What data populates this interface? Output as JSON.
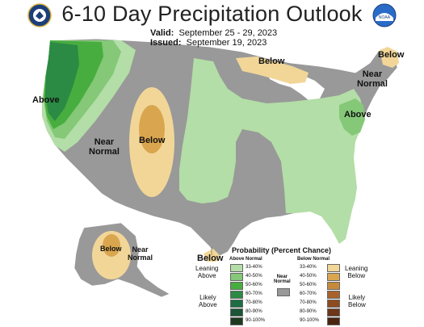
{
  "header": {
    "title": "6-10 Day Precipitation Outlook",
    "valid_label": "Valid:",
    "valid_value": "September 25 - 29, 2023",
    "issued_label": "Issued:",
    "issued_value": "September 19, 2023"
  },
  "logos": {
    "left": "doc-seal-icon",
    "right": "noaa-logo-icon",
    "right_text": "NOAA"
  },
  "map_labels": {
    "above_west": "Above",
    "near_normal_west": [
      "Near",
      "Normal"
    ],
    "below_rockies": "Below",
    "below_great_lakes": "Below",
    "below_maine": "Below",
    "near_normal_northeast": [
      "Near",
      "Normal"
    ],
    "above_midatlantic": "Above",
    "below_alaska": "Below",
    "near_normal_alaska": [
      "Near",
      "Normal"
    ],
    "below_hawaii": "Below"
  },
  "legend": {
    "title": "Probability (Percent Chance)",
    "above_header": "Above Normal",
    "below_header": "Below Normal",
    "near_normal_label": [
      "Near",
      "Normal"
    ],
    "leaning_above": [
      "Leaning",
      "Above"
    ],
    "likely_above": [
      "Likely",
      "Above"
    ],
    "leaning_below": [
      "Leaning",
      "Below"
    ],
    "likely_below": [
      "Likely",
      "Below"
    ],
    "above_rows": [
      {
        "range": "33-40%",
        "color": "#b3dea7"
      },
      {
        "range": "40-50%",
        "color": "#84c878"
      },
      {
        "range": "50-60%",
        "color": "#48ad3f"
      },
      {
        "range": "60-70%",
        "color": "#2b8a44"
      },
      {
        "range": "70-80%",
        "color": "#1e6d43"
      },
      {
        "range": "80-90%",
        "color": "#1a5535"
      },
      {
        "range": "90-100%",
        "color": "#1e3a1e"
      }
    ],
    "below_rows": [
      {
        "range": "33-40%",
        "color": "#f2d698"
      },
      {
        "range": "40-50%",
        "color": "#d9a64f"
      },
      {
        "range": "50-60%",
        "color": "#c58a3b"
      },
      {
        "range": "60-70%",
        "color": "#a8632c"
      },
      {
        "range": "70-80%",
        "color": "#8e4b1f"
      },
      {
        "range": "80-90%",
        "color": "#6e3518"
      },
      {
        "range": "90-100%",
        "color": "#4a2410"
      }
    ],
    "near_normal_color": "#999999"
  },
  "colors": {
    "near_normal": "#999999",
    "above_33": "#b3dea7",
    "above_40": "#84c878",
    "above_50": "#48ad3f",
    "above_60": "#2b8a44",
    "below_33": "#f2d698",
    "below_40": "#d9a64f"
  }
}
